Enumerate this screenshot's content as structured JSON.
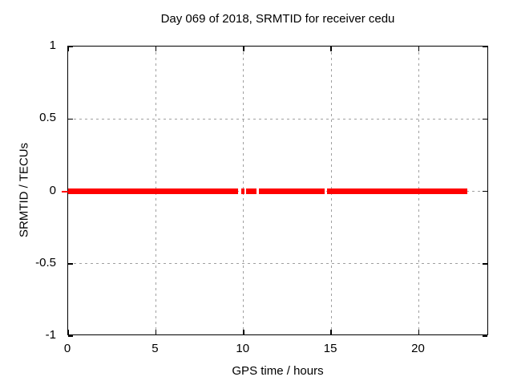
{
  "chart_data": {
    "type": "scatter",
    "title": "Day 069 of 2018, SRMTID for receiver cedu",
    "xlabel": "GPS time / hours",
    "ylabel": "SRMTID / TECUs",
    "xlim": [
      0,
      24
    ],
    "ylim": [
      -1,
      1
    ],
    "xticks": [
      0,
      5,
      10,
      15,
      20
    ],
    "xtick_labels": [
      "0",
      "5",
      "10",
      "15",
      "20"
    ],
    "yticks": [
      1,
      0.5,
      0,
      -0.5,
      -1
    ],
    "ytick_labels": [
      "1",
      "0.5",
      "0",
      "-0.5",
      "-1"
    ],
    "grid": true,
    "legend": "none",
    "series": [
      {
        "name": "SRMTID",
        "style": "points",
        "color": "#ff0000",
        "y_value": 0,
        "segments_hours": [
          [
            0.0,
            9.69
          ],
          [
            9.87,
            10.06
          ],
          [
            10.15,
            10.74
          ],
          [
            10.88,
            14.63
          ],
          [
            14.77,
            22.77
          ]
        ],
        "start_cap_hours": [
          -0.37,
          0.0
        ]
      }
    ],
    "colors": {
      "grid": "#a0a0a0",
      "border": "#000000",
      "text": "#000000"
    }
  }
}
